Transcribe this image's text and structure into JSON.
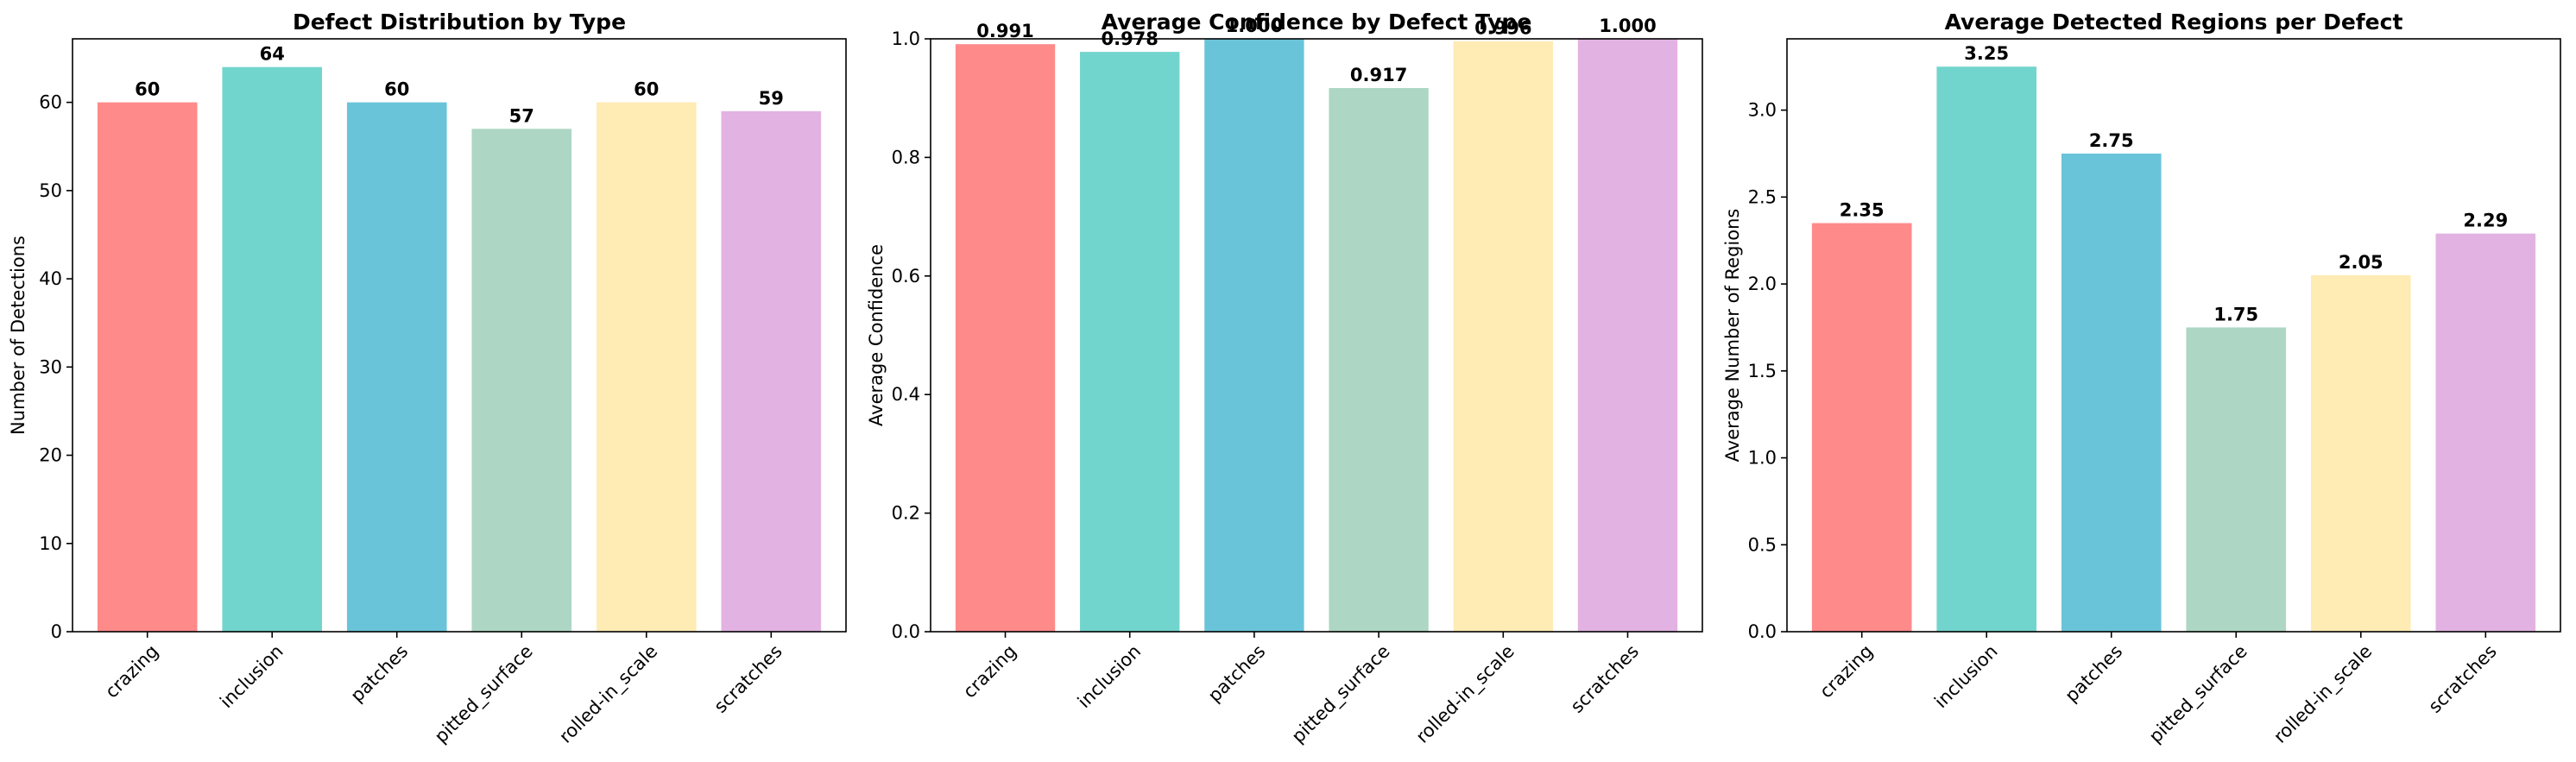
{
  "colors": [
    "#FF8A8A",
    "#72D5CD",
    "#6AC4D9",
    "#ADD7C4",
    "#FFEBB4",
    "#E2B2E2"
  ],
  "chart_data": [
    {
      "type": "bar",
      "title": "Defect Distribution by Type",
      "xlabel": "",
      "ylabel": "Number of Detections",
      "categories": [
        "crazing",
        "inclusion",
        "patches",
        "pitted_surface",
        "rolled-in_scale",
        "scratches"
      ],
      "values": [
        60,
        64,
        60,
        57,
        60,
        59
      ],
      "value_labels": [
        "60",
        "64",
        "60",
        "57",
        "60",
        "59"
      ],
      "ylim": [
        0,
        67.2
      ],
      "yticks": [
        0,
        10,
        20,
        30,
        40,
        50,
        60
      ],
      "ytick_labels": [
        "0",
        "10",
        "20",
        "30",
        "40",
        "50",
        "60"
      ],
      "grid": false,
      "legend": "none"
    },
    {
      "type": "bar",
      "title": "Average Confidence by Defect Type",
      "xlabel": "",
      "ylabel": "Average Confidence",
      "categories": [
        "crazing",
        "inclusion",
        "patches",
        "pitted_surface",
        "rolled-in_scale",
        "scratches"
      ],
      "values": [
        0.991,
        0.978,
        1.0,
        0.917,
        0.996,
        1.0
      ],
      "value_labels": [
        "0.991",
        "0.978",
        "1.000",
        "0.917",
        "0.996",
        "1.000"
      ],
      "ylim": [
        0,
        1.0
      ],
      "yticks": [
        0,
        0.2,
        0.4,
        0.6,
        0.8,
        1.0
      ],
      "ytick_labels": [
        "0.0",
        "0.2",
        "0.4",
        "0.6",
        "0.8",
        "1.0"
      ],
      "grid": false,
      "legend": "none"
    },
    {
      "type": "bar",
      "title": "Average Detected Regions per Defect",
      "xlabel": "",
      "ylabel": "Average Number of Regions",
      "categories": [
        "crazing",
        "inclusion",
        "patches",
        "pitted_surface",
        "rolled-in_scale",
        "scratches"
      ],
      "values": [
        2.35,
        3.25,
        2.75,
        1.75,
        2.05,
        2.29
      ],
      "value_labels": [
        "2.35",
        "3.25",
        "2.75",
        "1.75",
        "2.05",
        "2.29"
      ],
      "ylim": [
        0,
        3.41
      ],
      "yticks": [
        0,
        0.5,
        1.0,
        1.5,
        2.0,
        2.5,
        3.0
      ],
      "ytick_labels": [
        "0.0",
        "0.5",
        "1.0",
        "1.5",
        "2.0",
        "2.5",
        "3.0"
      ],
      "grid": false,
      "legend": "none"
    }
  ]
}
